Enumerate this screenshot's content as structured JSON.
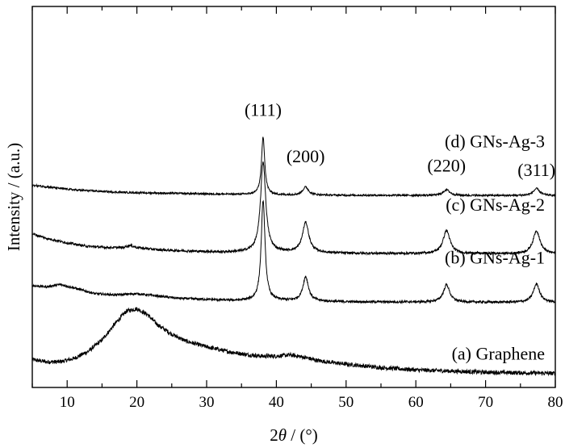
{
  "chart_data": {
    "type": "line",
    "xlabel_prefix": "2",
    "xlabel_theta": "θ",
    "xlabel_suffix": " / (°)",
    "ylabel": "Intensity / (a.u.)",
    "xlim": [
      5,
      80
    ],
    "y_ticks_shown": false,
    "grid": false,
    "x_ticks": [
      10,
      20,
      30,
      40,
      50,
      60,
      70,
      80
    ],
    "series": [
      {
        "name": "(a) Graphene",
        "offset": 0.0,
        "noise": 0.018,
        "points": [
          [
            5,
            0.13
          ],
          [
            7,
            0.11
          ],
          [
            9,
            0.11
          ],
          [
            11,
            0.14
          ],
          [
            13,
            0.2
          ],
          [
            15,
            0.3
          ],
          [
            17,
            0.45
          ],
          [
            18.5,
            0.55
          ],
          [
            20,
            0.57
          ],
          [
            21.5,
            0.52
          ],
          [
            23,
            0.43
          ],
          [
            25,
            0.35
          ],
          [
            27,
            0.29
          ],
          [
            30,
            0.24
          ],
          [
            33,
            0.2
          ],
          [
            36,
            0.17
          ],
          [
            38,
            0.16
          ],
          [
            40,
            0.16
          ],
          [
            42,
            0.17
          ],
          [
            44,
            0.15
          ],
          [
            46,
            0.12
          ],
          [
            50,
            0.09
          ],
          [
            55,
            0.06
          ],
          [
            60,
            0.04
          ],
          [
            65,
            0.03
          ],
          [
            70,
            0.02
          ],
          [
            75,
            0.015
          ],
          [
            80,
            0.01
          ]
        ],
        "peaks": []
      },
      {
        "name": "(b) GNs-Ag-1",
        "offset": 0.62,
        "noise": 0.01,
        "points": [
          [
            5,
            0.15
          ],
          [
            7,
            0.14
          ],
          [
            9,
            0.16
          ],
          [
            11,
            0.13
          ],
          [
            14,
            0.08
          ],
          [
            17,
            0.07
          ],
          [
            20,
            0.08
          ],
          [
            23,
            0.06
          ],
          [
            26,
            0.04
          ],
          [
            30,
            0.03
          ],
          [
            34,
            0.02
          ],
          [
            40,
            0.02
          ],
          [
            50,
            0.01
          ],
          [
            60,
            0.008
          ],
          [
            70,
            0.006
          ],
          [
            80,
            0.005
          ]
        ],
        "peaks": [
          [
            38.1,
            0.87,
            0.33
          ],
          [
            44.2,
            0.21,
            0.48
          ],
          [
            64.4,
            0.15,
            0.55
          ],
          [
            77.3,
            0.16,
            0.55
          ]
        ]
      },
      {
        "name": "(c) GNs-Ag-2",
        "offset": 1.04,
        "noise": 0.01,
        "points": [
          [
            5,
            0.18
          ],
          [
            7,
            0.14
          ],
          [
            10,
            0.1
          ],
          [
            13,
            0.07
          ],
          [
            16,
            0.06
          ],
          [
            18,
            0.06
          ],
          [
            19,
            0.08
          ],
          [
            20,
            0.06
          ],
          [
            23,
            0.04
          ],
          [
            27,
            0.03
          ],
          [
            32,
            0.02
          ],
          [
            40,
            0.02
          ],
          [
            50,
            0.01
          ],
          [
            60,
            0.008
          ],
          [
            70,
            0.006
          ],
          [
            80,
            0.005
          ]
        ],
        "peaks": [
          [
            38.1,
            0.78,
            0.45
          ],
          [
            44.2,
            0.26,
            0.55
          ],
          [
            64.4,
            0.2,
            0.6
          ],
          [
            77.3,
            0.2,
            0.6
          ]
        ]
      },
      {
        "name": "(d) GNs-Ag-3",
        "offset": 1.55,
        "noise": 0.008,
        "points": [
          [
            5,
            0.09
          ],
          [
            8,
            0.07
          ],
          [
            11,
            0.05
          ],
          [
            14,
            0.04
          ],
          [
            17,
            0.03
          ],
          [
            20,
            0.025
          ],
          [
            25,
            0.02
          ],
          [
            30,
            0.015
          ],
          [
            35,
            0.01
          ],
          [
            40,
            0.005
          ],
          [
            50,
            0.003
          ],
          [
            60,
            0.002
          ],
          [
            70,
            0.001
          ],
          [
            80,
            0.0
          ]
        ],
        "peaks": [
          [
            38.1,
            0.5,
            0.28
          ],
          [
            44.2,
            0.07,
            0.5
          ],
          [
            64.4,
            0.05,
            0.55
          ],
          [
            77.3,
            0.06,
            0.55
          ]
        ]
      }
    ],
    "annotations": [
      {
        "text": "(111)",
        "x": 38.1,
        "y": 2.24
      },
      {
        "text": "(200)",
        "x": 44.2,
        "y": 1.84
      },
      {
        "text": "(220)",
        "x": 64.4,
        "y": 1.76
      },
      {
        "text": "(311)",
        "x": 77.3,
        "y": 1.72
      }
    ],
    "series_labels": [
      {
        "text": "(d) GNs-Ag-3",
        "x": 78.5,
        "y": 1.97
      },
      {
        "text": "(c) GNs-Ag-2",
        "x": 78.5,
        "y": 1.42
      },
      {
        "text": "(b) GNs-Ag-1",
        "x": 78.5,
        "y": 0.96
      },
      {
        "text": "(a) Graphene",
        "x": 78.5,
        "y": 0.13
      }
    ]
  }
}
